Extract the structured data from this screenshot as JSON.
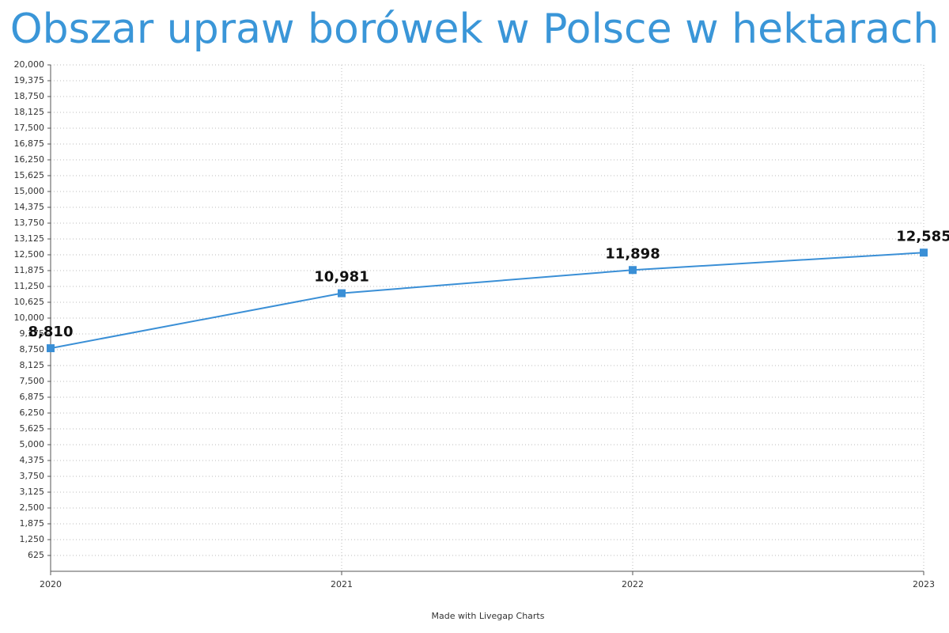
{
  "chart_data": {
    "type": "line",
    "title": "Obszar upraw borówek w Polsce w hektarach",
    "categories": [
      "2020",
      "2021",
      "2022",
      "2023"
    ],
    "values": [
      8810,
      10981,
      11898,
      12585
    ],
    "value_labels": [
      "8,810",
      "10,981",
      "11,898",
      "12,585"
    ],
    "color": "#3a8fd6",
    "ylim": [
      0,
      20000
    ],
    "yticks": [
      625,
      {
        "value": 1250,
        "label": "1,250"
      },
      {
        "value": 1875,
        "label": "1,875"
      },
      {
        "value": 2500,
        "label": "2,500"
      },
      {
        "value": 3125,
        "label": "3,125"
      },
      {
        "value": 3750,
        "label": "3,750"
      },
      {
        "value": 4375,
        "label": "4,375"
      },
      {
        "value": 5000,
        "label": "5,000"
      },
      {
        "value": 5625,
        "label": "5,625"
      },
      {
        "value": 6250,
        "label": "6,250"
      },
      {
        "value": 6875,
        "label": "6,875"
      },
      {
        "value": 7500,
        "label": "7,500"
      },
      {
        "value": 8125,
        "label": "8,125"
      },
      {
        "value": 8750,
        "label": "8,750"
      },
      {
        "value": 9375,
        "label": "9,375"
      },
      {
        "value": 10000,
        "label": "10,000"
      },
      {
        "value": 10625,
        "label": "10,625"
      },
      {
        "value": 11250,
        "label": "11,250"
      },
      {
        "value": 11875,
        "label": "11,875"
      },
      {
        "value": 12500,
        "label": "12,500"
      },
      {
        "value": 13125,
        "label": "13,125"
      },
      {
        "value": 13750,
        "label": "13,750"
      },
      {
        "value": 14375,
        "label": "14,375"
      },
      {
        "value": 15000,
        "label": "15,000"
      },
      {
        "value": 15625,
        "label": "15,625"
      },
      {
        "value": 16250,
        "label": "16,250"
      },
      {
        "value": 16875,
        "label": "16,875"
      },
      {
        "value": 17500,
        "label": "17,500"
      },
      {
        "value": 18125,
        "label": "18,125"
      },
      {
        "value": 18750,
        "label": "18,750"
      },
      {
        "value": 19375,
        "label": "19,375"
      },
      {
        "value": 20000,
        "label": "20,000"
      }
    ],
    "grid": true,
    "footer": "Made with Livegap Charts"
  }
}
